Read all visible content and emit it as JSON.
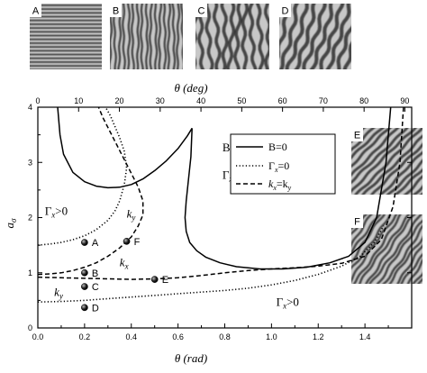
{
  "chart_data": {
    "type": "line",
    "xlabel_bottom": "θ (rad)",
    "xlabel_top": "θ (deg)",
    "ylabel": "a",
    "ylabel_sub": "σ",
    "xlim": [
      0.0,
      1.6
    ],
    "xlim_top": [
      0,
      91.67
    ],
    "ylim": [
      0,
      4
    ],
    "x_ticks": [
      "0.0",
      "0.2",
      "0.4",
      "0.6",
      "0.8",
      "1.0",
      "1.2",
      "1.4"
    ],
    "x_tick_values": [
      0.0,
      0.2,
      0.4,
      0.6,
      0.8,
      1.0,
      1.2,
      1.4
    ],
    "x_top_ticks": [
      "0",
      "10",
      "20",
      "30",
      "40",
      "50",
      "60",
      "70",
      "80",
      "90"
    ],
    "x_top_tick_values": [
      0,
      10,
      20,
      30,
      40,
      50,
      60,
      70,
      80,
      90
    ],
    "y_ticks": [
      "0",
      "1",
      "2",
      "3",
      "4"
    ],
    "y_tick_values": [
      0,
      1,
      2,
      3,
      4
    ],
    "grid": false,
    "legend": {
      "position": "top-right",
      "entries": [
        {
          "label": "B=0",
          "style": "solid"
        },
        {
          "label": "Γ",
          "sub": "x",
          "suffix": "=0",
          "style": "dotted"
        },
        {
          "label": "k",
          "sub": "x",
          "suffix": "=k",
          "sub2": "y",
          "style": "dashed"
        }
      ]
    },
    "series": [
      {
        "name": "B=0",
        "style": "solid",
        "segments": [
          {
            "x": [
              0.085,
              0.095,
              0.11,
              0.15,
              0.2,
              0.25,
              0.3,
              0.35,
              0.4,
              0.45,
              0.5,
              0.55,
              0.6,
              0.64,
              0.66
            ],
            "y": [
              4.0,
              3.5,
              3.15,
              2.82,
              2.65,
              2.57,
              2.54,
              2.55,
              2.6,
              2.7,
              2.85,
              3.03,
              3.25,
              3.48,
              3.62
            ]
          },
          {
            "x": [
              0.66,
              0.655,
              0.645,
              0.635,
              0.63,
              0.635,
              0.65,
              0.68,
              0.72,
              0.78,
              0.85,
              0.95,
              1.05,
              1.15,
              1.25,
              1.33,
              1.4,
              1.45,
              1.49,
              1.51
            ],
            "y": [
              3.62,
              3.1,
              2.7,
              2.3,
              2.0,
              1.75,
              1.55,
              1.4,
              1.28,
              1.18,
              1.11,
              1.07,
              1.07,
              1.1,
              1.18,
              1.3,
              1.55,
              2.0,
              3.0,
              4.0
            ]
          }
        ]
      },
      {
        "name": "Γx=0",
        "style": "dotted",
        "segments": [
          {
            "x": [
              0.0,
              0.05,
              0.1,
              0.15,
              0.2,
              0.25,
              0.3,
              0.33,
              0.35,
              0.37,
              0.38,
              0.37,
              0.35,
              0.33,
              0.31,
              0.29
            ],
            "y": [
              1.5,
              1.52,
              1.55,
              1.6,
              1.67,
              1.78,
              1.95,
              2.12,
              2.3,
              2.6,
              2.9,
              3.2,
              3.45,
              3.65,
              3.85,
              4.0
            ]
          },
          {
            "x": [
              0.0,
              0.1,
              0.2,
              0.3,
              0.4,
              0.5,
              0.6,
              0.7,
              0.8,
              0.9,
              1.0,
              1.1,
              1.2,
              1.3,
              1.38,
              1.44,
              1.48
            ],
            "y": [
              0.47,
              0.48,
              0.5,
              0.53,
              0.56,
              0.59,
              0.62,
              0.65,
              0.68,
              0.72,
              0.78,
              0.86,
              0.97,
              1.12,
              1.3,
              1.55,
              1.85
            ]
          }
        ]
      },
      {
        "name": "kx=ky",
        "style": "dashed",
        "segments": [
          {
            "x": [
              0.0,
              0.1,
              0.2,
              0.3,
              0.4,
              0.5,
              0.6,
              0.7,
              0.8,
              0.9,
              1.0,
              1.1,
              1.2,
              1.3,
              1.4,
              1.47,
              1.52,
              1.55,
              1.565
            ],
            "y": [
              0.92,
              0.91,
              0.9,
              0.89,
              0.88,
              0.89,
              0.91,
              0.95,
              1.0,
              1.04,
              1.07,
              1.09,
              1.12,
              1.17,
              1.3,
              1.6,
              2.2,
              3.0,
              4.0
            ]
          },
          {
            "x": [
              0.0,
              0.05,
              0.1,
              0.15,
              0.2,
              0.25,
              0.3,
              0.35,
              0.4,
              0.43,
              0.45,
              0.45,
              0.43,
              0.4,
              0.37,
              0.34,
              0.31,
              0.28,
              0.26
            ],
            "y": [
              0.97,
              0.98,
              1.0,
              1.04,
              1.1,
              1.18,
              1.3,
              1.45,
              1.65,
              1.85,
              2.05,
              2.3,
              2.55,
              2.8,
              3.05,
              3.3,
              3.55,
              3.8,
              4.0
            ]
          }
        ]
      }
    ],
    "points": [
      {
        "name": "A",
        "x": 0.2,
        "y": 1.55
      },
      {
        "name": "B",
        "x": 0.2,
        "y": 1.0
      },
      {
        "name": "C",
        "x": 0.2,
        "y": 0.75
      },
      {
        "name": "D",
        "x": 0.2,
        "y": 0.37
      },
      {
        "name": "E",
        "x": 0.5,
        "y": 0.88
      },
      {
        "name": "F",
        "x": 0.38,
        "y": 1.57
      }
    ],
    "annotations": [
      {
        "text": "B<0",
        "x": 0.79,
        "y": 3.2
      },
      {
        "text": "Γ",
        "sub": "x",
        "suffix": "<0",
        "x": 0.79,
        "y": 2.7
      },
      {
        "text": "Γ",
        "sub": "x",
        "suffix": ">0",
        "x": 0.03,
        "y": 2.05
      },
      {
        "text": "k",
        "sub": "y",
        "suffix": "",
        "x": 0.38,
        "y": 2.0
      },
      {
        "text": "k",
        "sub": "x",
        "suffix": "",
        "x": 0.35,
        "y": 1.12
      },
      {
        "text": "k",
        "sub": "y",
        "suffix": "",
        "x": 0.07,
        "y": 0.58
      },
      {
        "text": "Γ",
        "sub": "x",
        "suffix": ">0",
        "x": 1.02,
        "y": 0.4
      }
    ]
  },
  "insets": [
    {
      "label": "A"
    },
    {
      "label": "B"
    },
    {
      "label": "C"
    },
    {
      "label": "D"
    },
    {
      "label": "E"
    },
    {
      "label": "F"
    }
  ]
}
